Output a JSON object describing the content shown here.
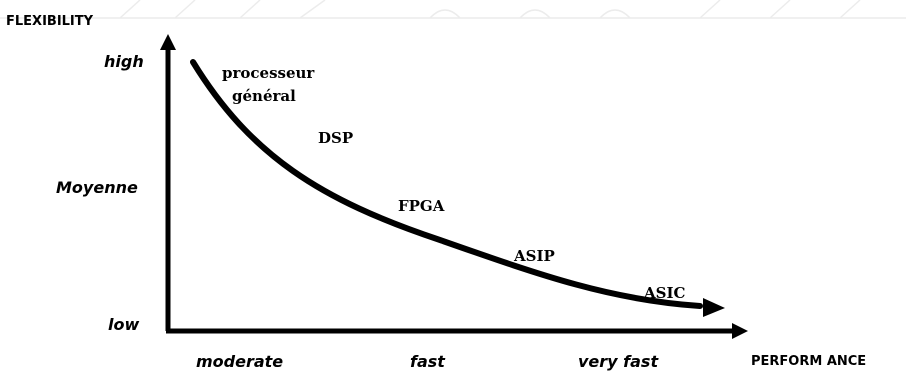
{
  "axes": {
    "y_title": "FLEXIBILITY",
    "x_title": "PERFORM ANCE",
    "y_ticks": [
      "high",
      "Moyenne",
      "low"
    ],
    "x_ticks": [
      "moderate",
      "fast",
      "very fast"
    ]
  },
  "curve_labels": {
    "processor_line1": "processeur",
    "processor_line2": "général",
    "dsp": "DSP",
    "fpga": "FPGA",
    "asip": "ASIP",
    "asic": "ASIC"
  },
  "colors": {
    "ink": "#000000",
    "background": "#ffffff"
  }
}
